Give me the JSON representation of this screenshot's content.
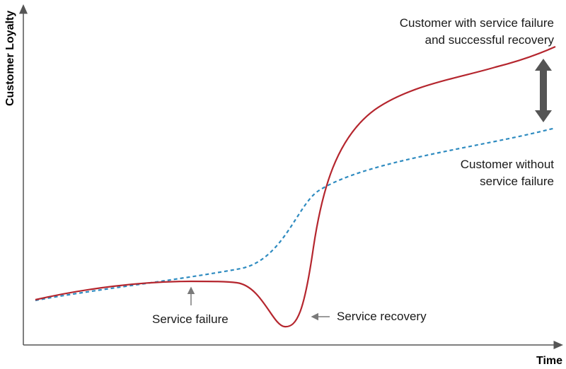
{
  "axes": {
    "y_label": "Customer Loyalty",
    "x_label": "Time"
  },
  "labels": {
    "recovery_curve_line1": "Customer with service failure",
    "recovery_curve_line2": "and successful recovery",
    "baseline_curve_line1": "Customer without",
    "baseline_curve_line2": "service failure",
    "service_failure": "Service failure",
    "service_recovery": "Service recovery"
  },
  "colors": {
    "recovery_curve": "#b5262e",
    "baseline_curve": "#2e8bc0",
    "axis": "#555555",
    "gap_arrow": "#555555",
    "pointer_arrow": "#7a7a7a"
  }
}
